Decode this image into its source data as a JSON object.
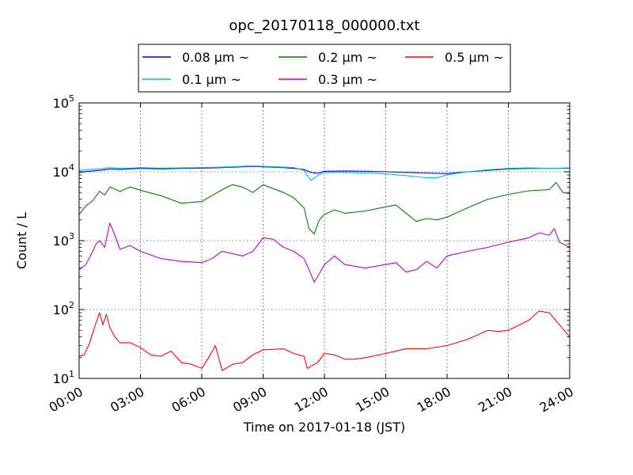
{
  "chart_data": {
    "type": "line",
    "title": "opc_20170118_000000.txt",
    "xlabel": "Time on 2017-01-18 (JST)",
    "ylabel": "Count / L",
    "y_scale": "log",
    "ylim": [
      10,
      100000
    ],
    "xlim": [
      "00:00",
      "24:00"
    ],
    "x_ticks": [
      "00:00",
      "03:00",
      "06:00",
      "09:00",
      "12:00",
      "15:00",
      "18:00",
      "21:00",
      "24:00"
    ],
    "y_ticks": [
      10,
      100,
      1000,
      10000,
      100000
    ],
    "y_tick_labels": [
      {
        "base": "10",
        "exp": "1"
      },
      {
        "base": "10",
        "exp": "2"
      },
      {
        "base": "10",
        "exp": "3"
      },
      {
        "base": "10",
        "exp": "4"
      },
      {
        "base": "10",
        "exp": "5"
      }
    ],
    "grid": true,
    "legend_position": "top-center",
    "series": [
      {
        "name": "0.08 μm ~",
        "color": "#0000ff",
        "x": [
          "00:00",
          "00:30",
          "01:00",
          "01:30",
          "02:00",
          "02:30",
          "03:00",
          "04:00",
          "05:00",
          "06:00",
          "07:00",
          "08:00",
          "08:30",
          "09:00",
          "10:00",
          "10:30",
          "11:00",
          "11:20",
          "11:40",
          "12:00",
          "13:00",
          "14:00",
          "15:00",
          "16:00",
          "17:00",
          "18:00",
          "19:00",
          "20:00",
          "21:00",
          "22:00",
          "23:00",
          "24:00"
        ],
        "y": [
          9800,
          10200,
          10500,
          11000,
          10800,
          11000,
          11200,
          11000,
          11200,
          11300,
          11500,
          11800,
          12000,
          11800,
          11500,
          11200,
          10800,
          9800,
          9500,
          10200,
          10300,
          10200,
          10000,
          9800,
          9600,
          9400,
          10000,
          10500,
          11000,
          11200,
          11200,
          11300
        ]
      },
      {
        "name": "0.1 μm ~",
        "color": "#00bfbf",
        "x": [
          "00:00",
          "00:30",
          "01:00",
          "01:30",
          "02:00",
          "02:30",
          "03:00",
          "04:00",
          "05:00",
          "06:00",
          "07:00",
          "08:00",
          "08:30",
          "09:00",
          "10:00",
          "10:30",
          "11:00",
          "11:20",
          "11:40",
          "12:00",
          "13:00",
          "14:00",
          "15:00",
          "16:00",
          "17:00",
          "17:30",
          "18:00",
          "19:00",
          "20:00",
          "21:00",
          "22:00",
          "23:00",
          "24:00"
        ],
        "y": [
          10500,
          10800,
          11000,
          11500,
          11200,
          11300,
          11500,
          11300,
          11400,
          11500,
          11700,
          12000,
          12200,
          12000,
          11700,
          11500,
          10500,
          7500,
          8800,
          9800,
          9800,
          9600,
          9300,
          8800,
          8200,
          8200,
          9000,
          10000,
          10700,
          11200,
          11400,
          11200,
          11400
        ]
      },
      {
        "name": "0.2 μm ~",
        "color": "#008000",
        "x": [
          "00:00",
          "00:20",
          "00:40",
          "01:00",
          "01:15",
          "01:30",
          "02:00",
          "02:30",
          "03:00",
          "04:00",
          "05:00",
          "06:00",
          "07:00",
          "07:30",
          "08:00",
          "08:30",
          "09:00",
          "10:00",
          "10:30",
          "11:00",
          "11:15",
          "11:30",
          "11:45",
          "12:00",
          "12:30",
          "13:00",
          "14:00",
          "15:00",
          "15:30",
          "16:00",
          "16:30",
          "17:00",
          "17:30",
          "18:00",
          "19:00",
          "20:00",
          "21:00",
          "22:00",
          "23:00",
          "23:20",
          "23:40",
          "24:00"
        ],
        "y": [
          2400,
          3200,
          3800,
          5200,
          4600,
          6000,
          5200,
          6000,
          5400,
          4500,
          3500,
          3700,
          5500,
          6500,
          6000,
          5000,
          6500,
          5000,
          4200,
          3000,
          1500,
          1250,
          2000,
          2400,
          2800,
          2500,
          2700,
          3100,
          3300,
          2500,
          1900,
          2100,
          2000,
          2200,
          3000,
          4000,
          4700,
          5300,
          5500,
          7000,
          5000,
          4800
        ]
      },
      {
        "name": "0.3 μm ~",
        "color": "#bf00bf",
        "x": [
          "00:00",
          "00:20",
          "00:40",
          "00:50",
          "01:00",
          "01:15",
          "01:30",
          "01:45",
          "02:00",
          "02:30",
          "03:00",
          "04:00",
          "05:00",
          "06:00",
          "06:30",
          "07:00",
          "08:00",
          "08:30",
          "09:00",
          "09:30",
          "10:00",
          "10:30",
          "11:00",
          "11:15",
          "11:30",
          "11:45",
          "12:00",
          "12:30",
          "13:00",
          "14:00",
          "15:00",
          "15:30",
          "16:00",
          "16:30",
          "17:00",
          "17:30",
          "18:00",
          "19:00",
          "20:00",
          "21:00",
          "22:00",
          "22:30",
          "23:00",
          "23:15",
          "23:30",
          "24:00"
        ],
        "y": [
          380,
          450,
          700,
          900,
          1000,
          800,
          1800,
          1200,
          750,
          850,
          700,
          550,
          500,
          480,
          550,
          700,
          600,
          700,
          1100,
          1050,
          800,
          700,
          550,
          380,
          250,
          330,
          450,
          600,
          450,
          400,
          450,
          480,
          350,
          380,
          500,
          400,
          600,
          700,
          800,
          950,
          1100,
          1300,
          1200,
          1500,
          950,
          800
        ]
      },
      {
        "name": "0.5 μm ~",
        "color": "#ff0000",
        "x": [
          "00:00",
          "00:15",
          "00:30",
          "00:45",
          "01:00",
          "01:10",
          "01:20",
          "01:30",
          "01:45",
          "02:00",
          "02:30",
          "03:00",
          "03:30",
          "04:00",
          "04:30",
          "05:00",
          "05:30",
          "06:00",
          "06:20",
          "06:40",
          "07:00",
          "07:30",
          "08:00",
          "08:30",
          "09:00",
          "10:00",
          "10:30",
          "11:00",
          "11:10",
          "11:20",
          "11:40",
          "12:00",
          "12:30",
          "13:00",
          "13:30",
          "14:00",
          "15:00",
          "16:00",
          "17:00",
          "18:00",
          "19:00",
          "20:00",
          "20:30",
          "21:00",
          "22:00",
          "22:30",
          "23:00",
          "23:30",
          "24:00"
        ],
        "y": [
          21,
          22,
          32,
          55,
          90,
          60,
          85,
          55,
          40,
          33,
          33,
          28,
          22,
          21,
          25,
          17,
          16,
          14,
          20,
          30,
          13,
          16,
          17,
          22,
          26,
          27,
          23,
          21,
          14,
          15,
          17,
          23,
          22,
          19,
          19,
          20,
          23,
          27,
          27,
          30,
          37,
          50,
          48,
          50,
          70,
          95,
          90,
          60,
          40
        ]
      }
    ]
  }
}
